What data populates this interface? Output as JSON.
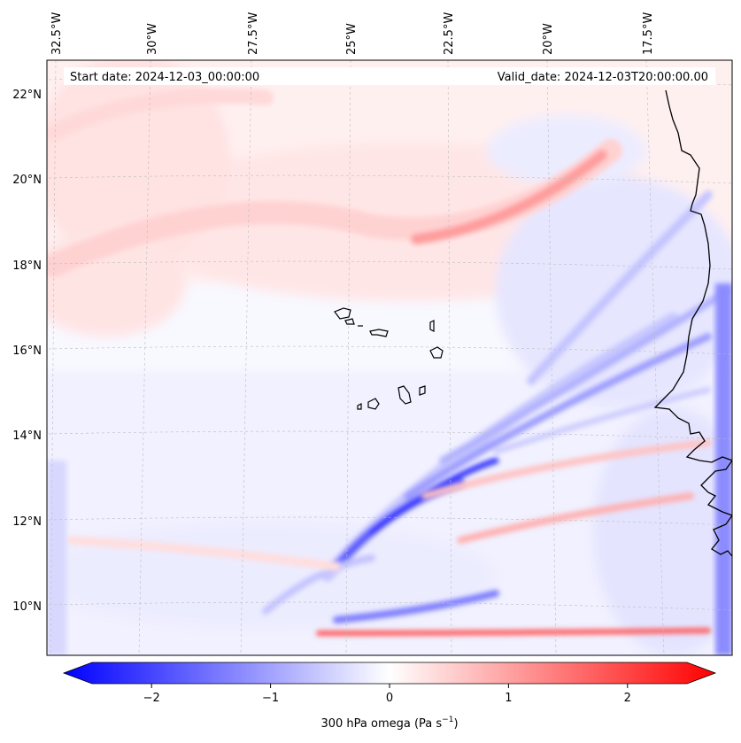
{
  "map": {
    "start_date_label": "Start date: 2024-12-03_00:00:00",
    "valid_date_label": "Valid_date: 2024-12-03T20:00:00.00",
    "lon_labels": [
      "32.5°W",
      "30°W",
      "27.5°W",
      "25°W",
      "22.5°W",
      "20°W",
      "17.5°W"
    ],
    "lat_labels": [
      "22°N",
      "20°N",
      "18°N",
      "16°N",
      "14°N",
      "12°N",
      "10°N"
    ],
    "colors": {
      "negative": "#0000ff",
      "neutral": "#ffffff",
      "positive": "#ff0000",
      "coastline": "#000000"
    }
  },
  "colorbar": {
    "ticks": [
      "−2",
      "−1",
      "0",
      "1",
      "2"
    ],
    "tick_values": [
      -2,
      -1,
      0,
      1,
      2
    ],
    "range": [
      -2.6,
      2.6
    ],
    "label_main": "300 hPa omega (Pa s",
    "label_sup": "−1",
    "label_end": ")"
  }
}
